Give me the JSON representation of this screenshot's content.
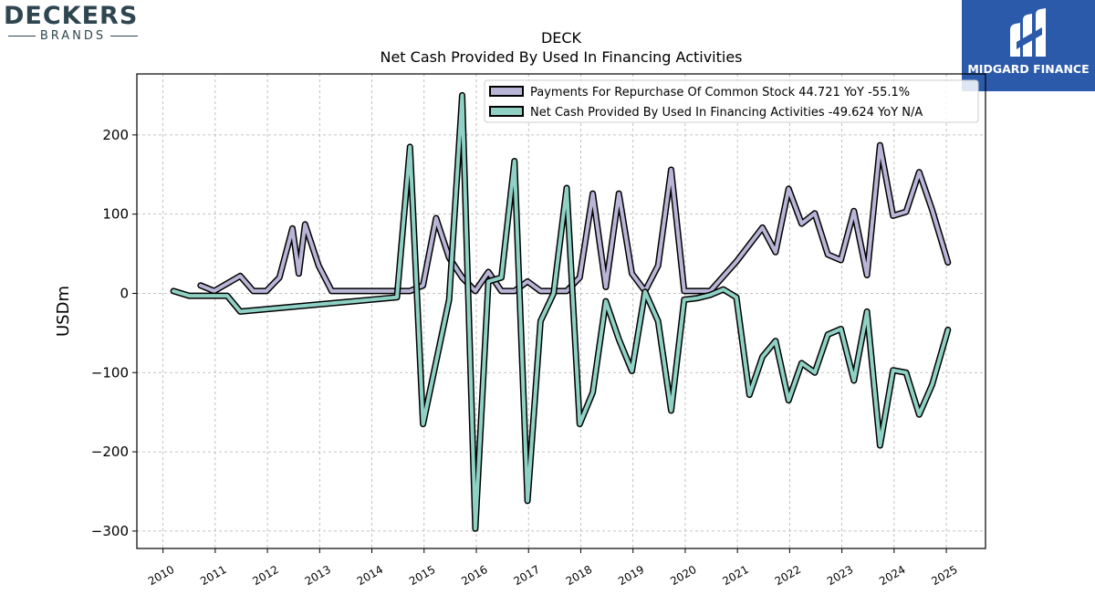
{
  "brand_left": {
    "name": "DECKERS",
    "sub": "BRANDS"
  },
  "brand_right": {
    "name": "MIDGARD FINANCE",
    "color": "#2c5aab"
  },
  "chart_data": {
    "type": "line",
    "title": "DECK",
    "subtitle": "Net Cash Provided By Used In Financing Activities",
    "xlabel": "",
    "ylabel": "USDm",
    "xlim": [
      2009.5,
      2025.75
    ],
    "ylim": [
      -322,
      277
    ],
    "x_ticks": [
      2010,
      2011,
      2012,
      2013,
      2014,
      2015,
      2016,
      2017,
      2018,
      2019,
      2020,
      2021,
      2022,
      2023,
      2024,
      2025
    ],
    "y_ticks": [
      -300,
      -200,
      -100,
      0,
      100,
      200
    ],
    "y_tick_labels": [
      "−300",
      "−200",
      "−100",
      "0",
      "100",
      "200"
    ],
    "grid": true,
    "legend_position": "top-right",
    "series": [
      {
        "name": "Payments For Repurchase Of Common Stock",
        "legend_label": "Payments For Repurchase Of Common Stock  44.721 YoY -55.1%",
        "color": "#b8b5d6",
        "x": [
          2010.72,
          2010.98,
          2011.48,
          2011.73,
          2011.98,
          2012.23,
          2012.48,
          2012.6,
          2012.72,
          2012.98,
          2013.23,
          2014.48,
          2014.73,
          2014.98,
          2015.23,
          2015.48,
          2015.73,
          2015.98,
          2016.23,
          2016.48,
          2016.73,
          2016.98,
          2017.23,
          2017.48,
          2017.73,
          2017.98,
          2018.23,
          2018.48,
          2018.73,
          2018.98,
          2019.23,
          2019.48,
          2019.73,
          2019.98,
          2020.48,
          2020.98,
          2021.48,
          2021.73,
          2021.98,
          2022.23,
          2022.48,
          2022.73,
          2022.98,
          2023.23,
          2023.48,
          2023.73,
          2023.98,
          2024.23,
          2024.48,
          2024.73,
          2025.03
        ],
        "values": [
          10,
          3,
          22,
          3,
          3,
          20,
          82,
          25,
          87,
          35,
          3,
          3,
          3,
          10,
          95,
          45,
          20,
          3,
          27,
          3,
          3,
          15,
          3,
          3,
          3,
          20,
          126,
          8,
          126,
          25,
          3,
          35,
          156,
          3,
          3,
          40,
          83,
          52,
          132,
          88,
          101,
          49,
          42,
          104,
          23,
          187,
          98,
          103,
          153,
          105,
          39
        ]
      },
      {
        "name": "Net Cash Provided By Used In Financing Activities",
        "legend_label": "Net Cash Provided By Used In Financing Activities  -49.624 YoY N/A",
        "color": "#8fd1c4",
        "x": [
          2010.2,
          2010.5,
          2010.98,
          2011.23,
          2011.48,
          2014.48,
          2014.73,
          2014.98,
          2015.48,
          2015.73,
          2015.98,
          2016.23,
          2016.48,
          2016.73,
          2016.98,
          2017.23,
          2017.48,
          2017.73,
          2017.98,
          2018.23,
          2018.48,
          2018.73,
          2018.98,
          2019.23,
          2019.48,
          2019.73,
          2019.98,
          2020.23,
          2020.48,
          2020.73,
          2020.98,
          2021.23,
          2021.48,
          2021.73,
          2021.98,
          2022.23,
          2022.48,
          2022.73,
          2022.98,
          2023.23,
          2023.48,
          2023.73,
          2023.98,
          2024.23,
          2024.48,
          2024.73,
          2025.03
        ],
        "values": [
          3,
          -3,
          -3,
          -3,
          -23,
          -5,
          185,
          -165,
          -8,
          250,
          -297,
          15,
          20,
          167,
          -262,
          -35,
          0,
          133,
          -165,
          -125,
          -10,
          -58,
          -98,
          2,
          -35,
          -148,
          -8,
          -6,
          -2,
          5,
          -5,
          -128,
          -80,
          -60,
          -135,
          -88,
          -100,
          -52,
          -45,
          -110,
          -23,
          -192,
          -97,
          -100,
          -153,
          -115,
          -46
        ]
      }
    ]
  }
}
